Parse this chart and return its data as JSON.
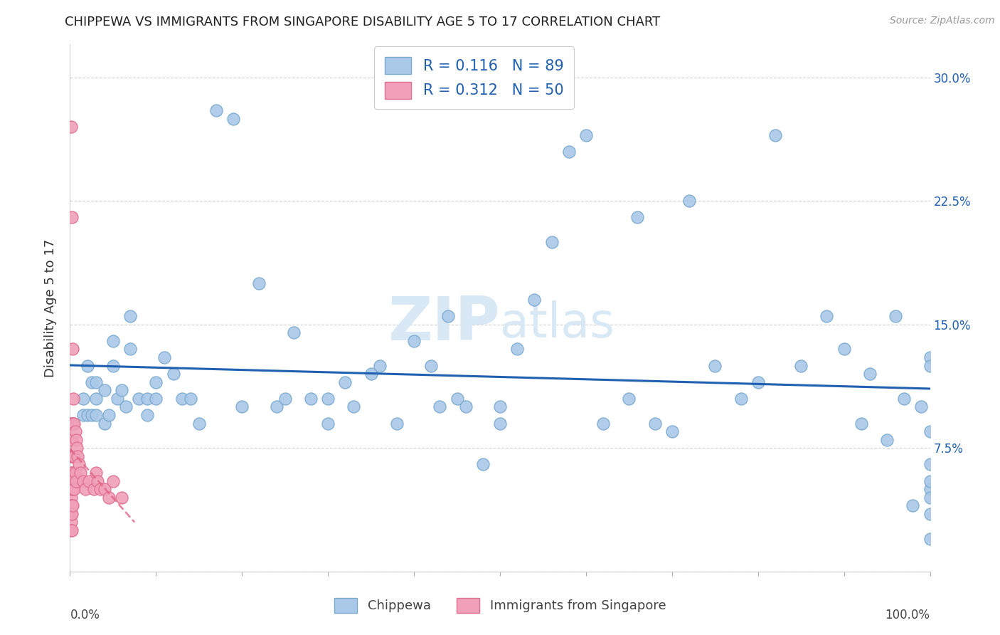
{
  "title": "CHIPPEWA VS IMMIGRANTS FROM SINGAPORE DISABILITY AGE 5 TO 17 CORRELATION CHART",
  "source": "Source: ZipAtlas.com",
  "ylabel": "Disability Age 5 to 17",
  "ylim": [
    0,
    0.32
  ],
  "xlim": [
    0,
    1.0
  ],
  "yticks": [
    0.0,
    0.075,
    0.15,
    0.225,
    0.3
  ],
  "ytick_labels_right": [
    "",
    "7.5%",
    "15.0%",
    "22.5%",
    "30.0%"
  ],
  "R_blue": 0.116,
  "N_blue": 89,
  "R_pink": 0.312,
  "N_pink": 50,
  "blue_scatter_color": "#aac8e8",
  "pink_scatter_color": "#f0a0b8",
  "blue_edge_color": "#7aaad0",
  "pink_edge_color": "#e07090",
  "trend_blue_color": "#2060b0",
  "trend_pink_color": "#e06080",
  "watermark_color": "#d8e8f4",
  "legend_label_blue": "Chippewa",
  "legend_label_pink": "Immigrants from Singapore",
  "blue_x": [
    0.015,
    0.015,
    0.02,
    0.02,
    0.025,
    0.025,
    0.03,
    0.03,
    0.03,
    0.04,
    0.04,
    0.045,
    0.05,
    0.05,
    0.055,
    0.06,
    0.065,
    0.07,
    0.07,
    0.08,
    0.09,
    0.09,
    0.1,
    0.1,
    0.11,
    0.12,
    0.13,
    0.14,
    0.15,
    0.17,
    0.19,
    0.2,
    0.22,
    0.24,
    0.25,
    0.26,
    0.28,
    0.3,
    0.3,
    0.32,
    0.33,
    0.35,
    0.36,
    0.38,
    0.4,
    0.42,
    0.43,
    0.44,
    0.45,
    0.46,
    0.48,
    0.5,
    0.5,
    0.52,
    0.54,
    0.56,
    0.58,
    0.6,
    0.62,
    0.65,
    0.66,
    0.68,
    0.7,
    0.72,
    0.75,
    0.78,
    0.8,
    0.82,
    0.85,
    0.88,
    0.9,
    0.92,
    0.93,
    0.95,
    0.96,
    0.97,
    0.98,
    0.99,
    1.0,
    1.0,
    1.0,
    1.0,
    1.0,
    1.0,
    1.0,
    1.0,
    1.0
  ],
  "blue_y": [
    0.105,
    0.095,
    0.125,
    0.095,
    0.115,
    0.095,
    0.115,
    0.105,
    0.095,
    0.11,
    0.09,
    0.095,
    0.14,
    0.125,
    0.105,
    0.11,
    0.1,
    0.155,
    0.135,
    0.105,
    0.105,
    0.095,
    0.115,
    0.105,
    0.13,
    0.12,
    0.105,
    0.105,
    0.09,
    0.28,
    0.275,
    0.1,
    0.175,
    0.1,
    0.105,
    0.145,
    0.105,
    0.105,
    0.09,
    0.115,
    0.1,
    0.12,
    0.125,
    0.09,
    0.14,
    0.125,
    0.1,
    0.155,
    0.105,
    0.1,
    0.065,
    0.1,
    0.09,
    0.135,
    0.165,
    0.2,
    0.255,
    0.265,
    0.09,
    0.105,
    0.215,
    0.09,
    0.085,
    0.225,
    0.125,
    0.105,
    0.115,
    0.265,
    0.125,
    0.155,
    0.135,
    0.09,
    0.12,
    0.08,
    0.155,
    0.105,
    0.04,
    0.1,
    0.085,
    0.065,
    0.13,
    0.125,
    0.05,
    0.055,
    0.045,
    0.035,
    0.02
  ],
  "pink_x": [
    0.001,
    0.001,
    0.001,
    0.001,
    0.001,
    0.001,
    0.001,
    0.001,
    0.001,
    0.001,
    0.002,
    0.002,
    0.002,
    0.002,
    0.002,
    0.002,
    0.002,
    0.002,
    0.002,
    0.003,
    0.003,
    0.003,
    0.003,
    0.003,
    0.004,
    0.004,
    0.004,
    0.004,
    0.005,
    0.005,
    0.005,
    0.006,
    0.006,
    0.007,
    0.007,
    0.008,
    0.009,
    0.01,
    0.012,
    0.015,
    0.018,
    0.022,
    0.028,
    0.03,
    0.032,
    0.035,
    0.04,
    0.045,
    0.05,
    0.06
  ],
  "pink_y": [
    0.27,
    0.09,
    0.07,
    0.06,
    0.05,
    0.045,
    0.04,
    0.035,
    0.03,
    0.025,
    0.215,
    0.09,
    0.08,
    0.07,
    0.06,
    0.05,
    0.04,
    0.035,
    0.025,
    0.135,
    0.09,
    0.07,
    0.055,
    0.04,
    0.105,
    0.09,
    0.07,
    0.05,
    0.09,
    0.07,
    0.05,
    0.085,
    0.06,
    0.08,
    0.055,
    0.075,
    0.07,
    0.065,
    0.06,
    0.055,
    0.05,
    0.055,
    0.05,
    0.06,
    0.055,
    0.05,
    0.05,
    0.045,
    0.055,
    0.045
  ]
}
